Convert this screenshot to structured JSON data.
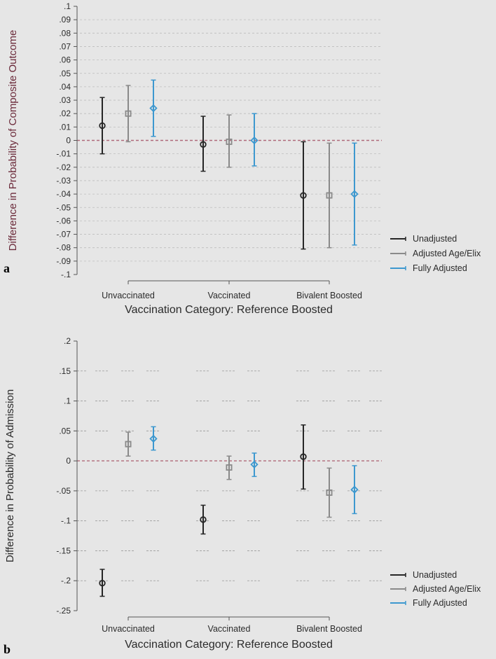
{
  "colors": {
    "unadjusted": "#262626",
    "adjusted_age_elix": "#8a8a8a",
    "fully_adjusted": "#3d98cf",
    "reference_line": "#b06a7a",
    "gridline": "#ffffff",
    "axis": "#555555",
    "background": "#e6e6e6",
    "ylabel_a": "#6b2a3a"
  },
  "legend_entries": [
    "Unadjusted",
    "Adjusted Age/Elix",
    "Fully Adjusted"
  ],
  "chart_data": [
    {
      "panel_label": "a",
      "type": "scatter",
      "style": "point estimates with confidence-interval error bars",
      "title": "",
      "xlabel": "Vaccination Category: Reference Boosted",
      "ylabel": "Difference in Probability of Composite Outcome",
      "categories": [
        "Unvaccinated",
        "Vaccinated",
        "Bivalent Boosted"
      ],
      "ylim": [
        -0.1,
        0.1
      ],
      "yticks": [
        -0.1,
        -0.09,
        -0.08,
        -0.07,
        -0.06,
        -0.05,
        -0.04,
        -0.03,
        -0.02,
        -0.01,
        0,
        0.01,
        0.02,
        0.03,
        0.04,
        0.05,
        0.06,
        0.07,
        0.08,
        0.09,
        0.1
      ],
      "ytick_labels": [
        "-.1",
        "-.09",
        "-.08",
        "-.07",
        "-.06",
        "-.05",
        "-.04",
        "-.03",
        "-.02",
        "-.01",
        "0",
        ".01",
        ".02",
        ".03",
        ".04",
        ".05",
        ".06",
        ".07",
        ".08",
        ".09",
        ".1"
      ],
      "reference_line": 0,
      "grid": true,
      "legend_position": "bottom-right",
      "series": [
        {
          "name": "Unadjusted",
          "marker": "circle",
          "estimates": [
            0.011,
            -0.003,
            -0.041
          ],
          "lower": [
            -0.01,
            -0.023,
            -0.081
          ],
          "upper": [
            0.032,
            0.018,
            -0.001
          ]
        },
        {
          "name": "Adjusted Age/Elix",
          "marker": "square",
          "estimates": [
            0.02,
            -0.001,
            -0.041
          ],
          "lower": [
            -0.001,
            -0.02,
            -0.08
          ],
          "upper": [
            0.041,
            0.019,
            -0.002
          ]
        },
        {
          "name": "Fully Adjusted",
          "marker": "diamond",
          "estimates": [
            0.024,
            0.0,
            -0.04
          ],
          "lower": [
            0.003,
            -0.019,
            -0.078
          ],
          "upper": [
            0.045,
            0.02,
            -0.002
          ]
        }
      ]
    },
    {
      "panel_label": "b",
      "type": "scatter",
      "style": "point estimates with confidence-interval error bars",
      "title": "",
      "xlabel": "Vaccination Category: Reference Boosted",
      "ylabel": "Difference in Probability of Admission",
      "categories": [
        "Unvaccinated",
        "Vaccinated",
        "Bivalent Boosted"
      ],
      "ylim": [
        -0.25,
        0.2
      ],
      "yticks": [
        -0.25,
        -0.2,
        -0.15,
        -0.1,
        -0.05,
        0,
        0.05,
        0.1,
        0.15,
        0.2
      ],
      "ytick_labels": [
        "-.25",
        "-.2",
        "-.15",
        "-.1",
        "-.05",
        "0",
        ".05",
        ".1",
        ".15",
        ".2"
      ],
      "reference_line": 0,
      "grid": true,
      "legend_position": "bottom-right",
      "series": [
        {
          "name": "Unadjusted",
          "marker": "circle",
          "estimates": [
            -0.204,
            -0.098,
            0.007
          ],
          "lower": [
            -0.226,
            -0.122,
            -0.047
          ],
          "upper": [
            -0.181,
            -0.074,
            0.06
          ]
        },
        {
          "name": "Adjusted Age/Elix",
          "marker": "square",
          "estimates": [
            0.028,
            -0.011,
            -0.053
          ],
          "lower": [
            0.008,
            -0.031,
            -0.094
          ],
          "upper": [
            0.048,
            0.008,
            -0.012
          ]
        },
        {
          "name": "Fully Adjusted",
          "marker": "diamond",
          "estimates": [
            0.037,
            -0.006,
            -0.048
          ],
          "lower": [
            0.018,
            -0.026,
            -0.088
          ],
          "upper": [
            0.057,
            0.013,
            -0.008
          ]
        }
      ]
    }
  ]
}
